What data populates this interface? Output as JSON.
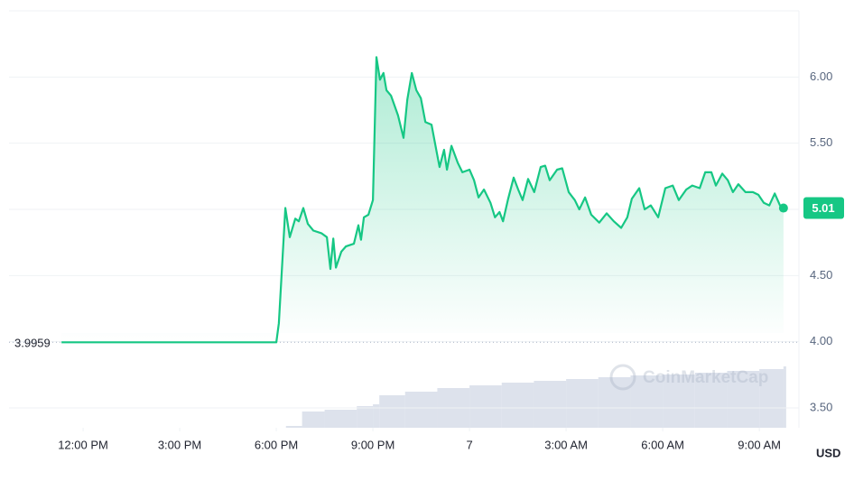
{
  "chart_data": {
    "type": "line",
    "color": "#16c784",
    "x": [
      -0.67,
      6.0,
      6.08,
      6.28,
      6.42,
      6.59,
      6.7,
      6.84,
      6.98,
      7.15,
      7.4,
      7.57,
      7.68,
      7.77,
      7.85,
      8.02,
      8.16,
      8.41,
      8.55,
      8.63,
      8.72,
      8.86,
      9.0,
      9.11,
      9.22,
      9.33,
      9.42,
      9.56,
      9.78,
      9.95,
      10.07,
      10.21,
      10.35,
      10.49,
      10.63,
      10.82,
      10.99,
      11.07,
      11.21,
      11.3,
      11.44,
      11.64,
      11.78,
      12.0,
      12.14,
      12.28,
      12.45,
      12.65,
      12.79,
      12.93,
      13.04,
      13.2,
      13.37,
      13.51,
      13.65,
      13.82,
      14.01,
      14.21,
      14.35,
      14.49,
      14.72,
      14.88,
      15.08,
      15.27,
      15.41,
      15.59,
      15.78,
      16.03,
      16.26,
      16.48,
      16.71,
      16.9,
      17.04,
      17.27,
      17.44,
      17.63,
      17.86,
      18.08,
      18.31,
      18.5,
      18.73,
      18.92,
      19.15,
      19.32,
      19.51,
      19.65,
      19.85,
      20.02,
      20.18,
      20.35,
      20.57,
      20.8,
      20.97,
      21.14,
      21.31,
      21.48,
      21.64,
      21.75
    ],
    "values": [
      3.9959,
      3.9959,
      4.14,
      5.01,
      4.79,
      4.93,
      4.91,
      5.01,
      4.89,
      4.84,
      4.82,
      4.79,
      4.55,
      4.78,
      4.56,
      4.68,
      4.72,
      4.74,
      4.88,
      4.77,
      4.94,
      4.96,
      5.07,
      6.15,
      5.98,
      6.03,
      5.9,
      5.86,
      5.71,
      5.54,
      5.83,
      6.03,
      5.9,
      5.84,
      5.66,
      5.64,
      5.42,
      5.32,
      5.45,
      5.3,
      5.48,
      5.35,
      5.28,
      5.3,
      5.22,
      5.09,
      5.15,
      5.05,
      4.94,
      4.98,
      4.91,
      5.08,
      5.24,
      5.15,
      5.07,
      5.23,
      5.13,
      5.32,
      5.33,
      5.22,
      5.3,
      5.31,
      5.13,
      5.07,
      5.0,
      5.09,
      4.96,
      4.9,
      4.97,
      4.91,
      4.86,
      4.94,
      5.08,
      5.16,
      5.0,
      5.03,
      4.94,
      5.16,
      5.18,
      5.07,
      5.15,
      5.18,
      5.16,
      5.28,
      5.28,
      5.18,
      5.27,
      5.22,
      5.13,
      5.19,
      5.13,
      5.13,
      5.11,
      5.05,
      5.03,
      5.12,
      5.03,
      5.01
    ],
    "xlim": [
      -2.3,
      22.23
    ],
    "xticks": [
      {
        "value": 0,
        "label": "12:00 PM"
      },
      {
        "value": 3,
        "label": "3:00 PM"
      },
      {
        "value": 6,
        "label": "6:00 PM"
      },
      {
        "value": 9,
        "label": "9:00 PM"
      },
      {
        "value": 12,
        "label": "7"
      },
      {
        "value": 15,
        "label": "3:00 AM"
      },
      {
        "value": 18,
        "label": "6:00 AM"
      },
      {
        "value": 21,
        "label": "9:00 AM"
      }
    ],
    "ylim": [
      3.35,
      6.5
    ],
    "yticks": [
      {
        "value": 3.5,
        "label": "3.50"
      },
      {
        "value": 4,
        "label": "4.00"
      },
      {
        "value": 4.5,
        "label": "4.50"
      },
      {
        "value": 5,
        "label": "5.00"
      },
      {
        "value": 5.5,
        "label": "5.50"
      },
      {
        "value": 6,
        "label": "6.00"
      }
    ],
    "grid": true,
    "reference_price": 3.9959,
    "current_price": 5.01,
    "currency": "USD",
    "watermark": "CoinMarketCap",
    "volume": {
      "color": "#cfd6e4",
      "ylim": [
        0,
        100
      ],
      "x": [
        6.3,
        6.8,
        7.5,
        8.5,
        9.0,
        9.2,
        10,
        11,
        12,
        13,
        14,
        15,
        16,
        17,
        18,
        19,
        20,
        21,
        21.75
      ],
      "values": [
        2,
        18,
        20,
        24,
        26,
        36,
        40,
        44,
        47,
        50,
        52,
        54,
        56,
        58,
        59,
        61,
        63,
        65,
        68
      ]
    }
  }
}
